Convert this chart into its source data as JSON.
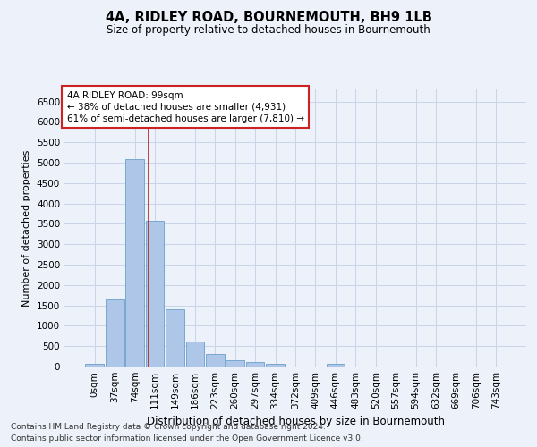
{
  "title": "4A, RIDLEY ROAD, BOURNEMOUTH, BH9 1LB",
  "subtitle": "Size of property relative to detached houses in Bournemouth",
  "xlabel": "Distribution of detached houses by size in Bournemouth",
  "ylabel": "Number of detached properties",
  "categories": [
    "0sqm",
    "37sqm",
    "74sqm",
    "111sqm",
    "149sqm",
    "186sqm",
    "223sqm",
    "260sqm",
    "297sqm",
    "334sqm",
    "372sqm",
    "409sqm",
    "446sqm",
    "483sqm",
    "520sqm",
    "557sqm",
    "594sqm",
    "632sqm",
    "669sqm",
    "706sqm",
    "743sqm"
  ],
  "values": [
    75,
    1650,
    5100,
    3580,
    1400,
    610,
    300,
    150,
    110,
    75,
    0,
    0,
    60,
    0,
    0,
    0,
    0,
    0,
    0,
    0,
    0
  ],
  "bar_color": "#aec6e8",
  "bar_edge_color": "#6a9fc8",
  "grid_color": "#c8d4e8",
  "background_color": "#edf1f9",
  "vline_x": 2.68,
  "vline_color": "#bb2222",
  "annotation_title": "4A RIDLEY ROAD: 99sqm",
  "annotation_line1": "← 38% of detached houses are smaller (4,931)",
  "annotation_line2": "61% of semi-detached houses are larger (7,810) →",
  "annotation_box_color": "#ffffff",
  "annotation_border_color": "#cc2222",
  "ylim": [
    0,
    6800
  ],
  "yticks": [
    0,
    500,
    1000,
    1500,
    2000,
    2500,
    3000,
    3500,
    4000,
    4500,
    5000,
    5500,
    6000,
    6500
  ],
  "footnote1": "Contains HM Land Registry data © Crown copyright and database right 2024.",
  "footnote2": "Contains public sector information licensed under the Open Government Licence v3.0.",
  "title_fontsize": 10.5,
  "subtitle_fontsize": 8.5,
  "xlabel_fontsize": 8.5,
  "ylabel_fontsize": 8,
  "tick_fontsize": 7.5,
  "annotation_fontsize": 7.5,
  "footnote_fontsize": 6.5
}
